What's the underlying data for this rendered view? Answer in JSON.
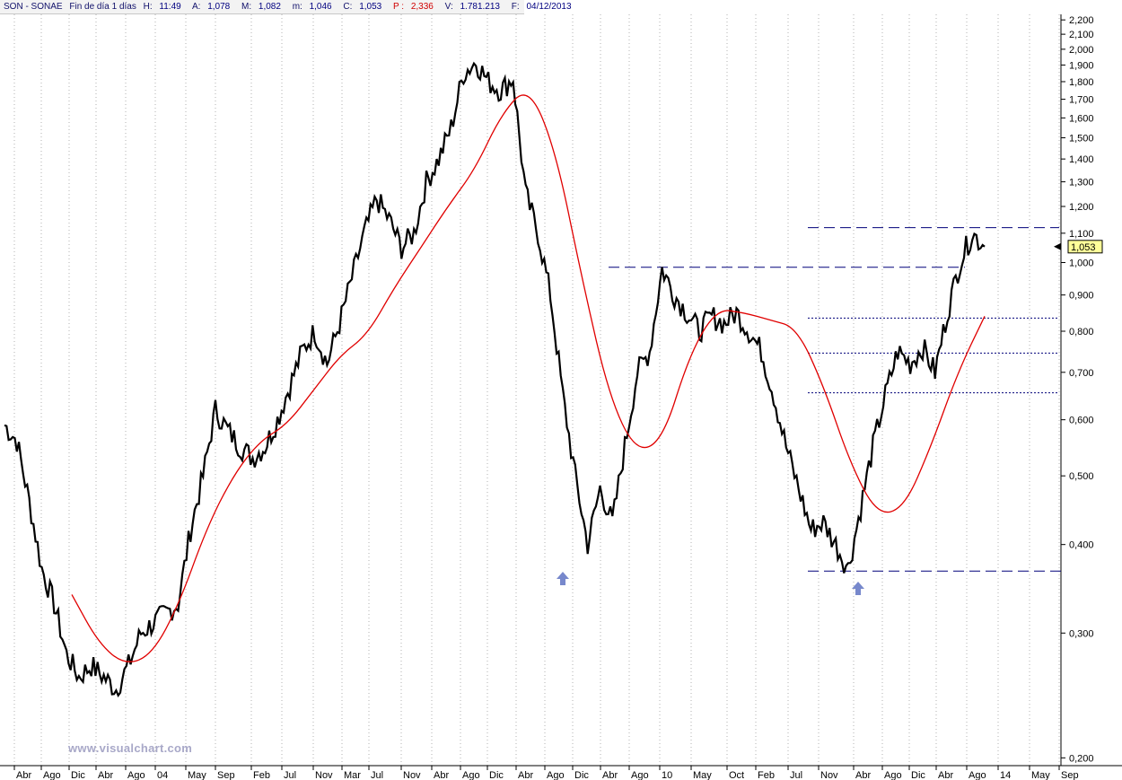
{
  "header": {
    "symbol": "SON - SONAE",
    "period": "Fin de día 1 días",
    "time_label": "H:",
    "time": "11:49",
    "open_label": "A:",
    "open": "1,078",
    "high_label": "M:",
    "high": "1,082",
    "low_label": "m:",
    "low": "1,046",
    "close_label": "C:",
    "close": "1,053",
    "pct_label": "P :",
    "pct": "2,336",
    "volume_label": "V:",
    "volume": "1.781.213",
    "date_label": "F:",
    "date": "04/12/2013"
  },
  "watermark": "www.visualchart.com",
  "last_price_tag": "1,053",
  "colors": {
    "price": "#000000",
    "moving_average": "#e00000",
    "lines": "#00007a",
    "arrow": "#7788cc",
    "grid": "#b0b0b0"
  },
  "chart_data": {
    "type": "line",
    "scale": "log",
    "ylim": [
      0.195,
      2.24
    ],
    "y_ticks": [
      "2,200",
      "2,100",
      "2,000",
      "1,900",
      "1,800",
      "1,700",
      "1,600",
      "1,500",
      "1,400",
      "1,300",
      "1,200",
      "1,100",
      "1,000",
      "0,900",
      "0,800",
      "0,700",
      "0,600",
      "0,500",
      "0,400",
      "0,300",
      "0,200"
    ],
    "y_tick_values": [
      2.2,
      2.1,
      2.0,
      1.9,
      1.8,
      1.7,
      1.6,
      1.5,
      1.4,
      1.3,
      1.2,
      1.1,
      1.0,
      0.9,
      0.8,
      0.7,
      0.6,
      0.5,
      0.4,
      0.3,
      0.2
    ],
    "x_ticks": [
      "Abr",
      "Ago",
      "Dic",
      "Abr",
      "Ago",
      "04",
      "May",
      "Sep",
      "Feb",
      "Jul",
      "Nov",
      "Mar",
      "Jul",
      "Nov",
      "Abr",
      "Ago",
      "Dic",
      "Abr",
      "Ago",
      "Dic",
      "Abr",
      "Ago",
      "10",
      "May",
      "Oct",
      "Feb",
      "Jul",
      "Nov",
      "Abr",
      "Ago",
      "Dic",
      "Abr",
      "Ago",
      "14",
      "May",
      "Sep"
    ],
    "series": [
      {
        "values": [
          0.59,
          0.56,
          0.46,
          0.37,
          0.33,
          0.28,
          0.26,
          0.27,
          0.26,
          0.25,
          0.27,
          0.3,
          0.31,
          0.32,
          0.33,
          0.42,
          0.5,
          0.62,
          0.58,
          0.55,
          0.53,
          0.55,
          0.6,
          0.67,
          0.75,
          0.8,
          0.72,
          0.82,
          0.95,
          1.1,
          1.23,
          1.15,
          1.05,
          1.1,
          1.3,
          1.4,
          1.55,
          1.85,
          1.92,
          1.8,
          1.75,
          1.82,
          1.25,
          1.1,
          0.9,
          0.65,
          0.5,
          0.4,
          0.48,
          0.43,
          0.55,
          0.7,
          0.75,
          0.98,
          0.9,
          0.85,
          0.8,
          0.84,
          0.82,
          0.85,
          0.8,
          0.75,
          0.65,
          0.55,
          0.48,
          0.42,
          0.43,
          0.4,
          0.37,
          0.45,
          0.55,
          0.65,
          0.75,
          0.72,
          0.76,
          0.7,
          0.85,
          1.0,
          1.1,
          1.053
        ]
      },
      {
        "values": [
          0.34,
          0.29,
          0.27,
          0.28,
          0.33,
          0.42,
          0.5,
          0.56,
          0.59,
          0.66,
          0.74,
          0.79,
          0.92,
          1.05,
          1.2,
          1.35,
          1.62,
          1.78,
          1.45,
          0.95,
          0.65,
          0.54,
          0.56,
          0.74,
          0.86,
          0.85,
          0.83,
          0.81,
          0.67,
          0.52,
          0.44,
          0.45,
          0.55,
          0.7,
          0.84
        ]
      }
    ],
    "annotations": [
      {
        "type": "dashed",
        "value": 1.12
      },
      {
        "type": "dashed",
        "value": 0.985
      },
      {
        "type": "dotted",
        "value": 0.835
      },
      {
        "type": "dotted",
        "value": 0.745
      },
      {
        "type": "dotted",
        "value": 0.655
      },
      {
        "type": "dashed",
        "value": 0.367
      }
    ]
  }
}
